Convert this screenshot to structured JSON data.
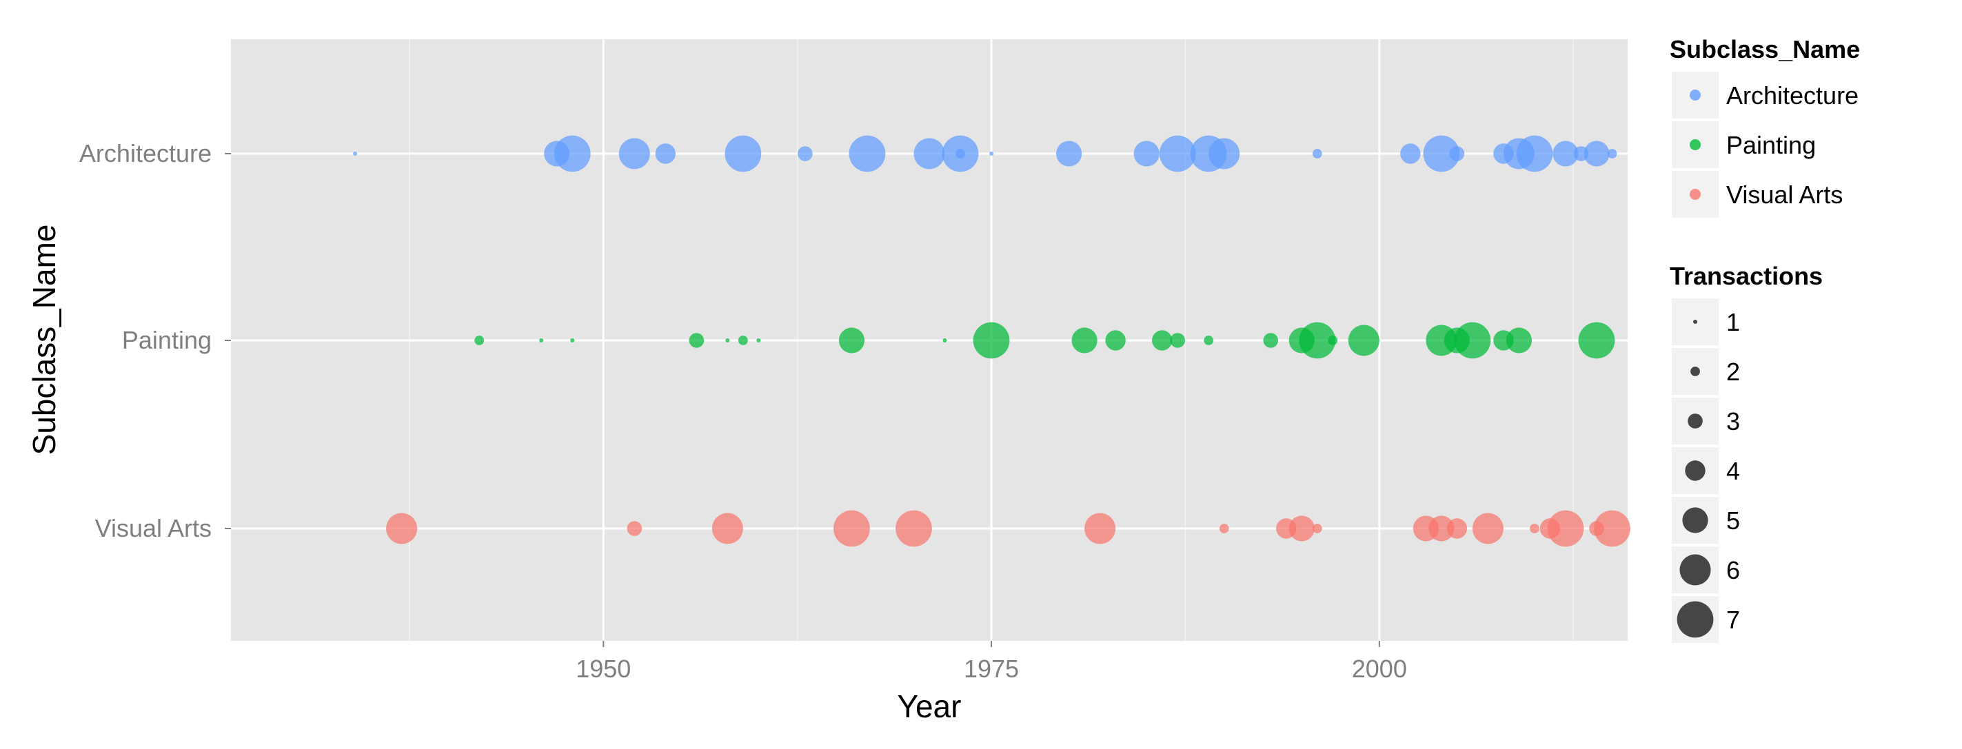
{
  "chart_data": {
    "type": "scatter",
    "xlabel": "Year",
    "ylabel": "Subclass_Name",
    "xlim": [
      1926,
      2016
    ],
    "x_ticks": [
      1950,
      1975,
      2000
    ],
    "categories": [
      "Architecture",
      "Painting",
      "Visual Arts"
    ],
    "grid": true,
    "legend_position": "right",
    "color_legend": {
      "title": "Subclass_Name",
      "items": [
        {
          "name": "Architecture",
          "color": "#619CFF"
        },
        {
          "name": "Painting",
          "color": "#00BA38"
        },
        {
          "name": "Visual Arts",
          "color": "#F8766D"
        }
      ]
    },
    "size_legend": {
      "title": "Transactions",
      "values": [
        1,
        2,
        3,
        4,
        5,
        6,
        7
      ]
    },
    "series": [
      {
        "name": "Architecture",
        "color": "#619CFF",
        "points": [
          {
            "x": 1934,
            "size": 1
          },
          {
            "x": 1947,
            "size": 5
          },
          {
            "x": 1948,
            "size": 7
          },
          {
            "x": 1952,
            "size": 6
          },
          {
            "x": 1954,
            "size": 4
          },
          {
            "x": 1959,
            "size": 7
          },
          {
            "x": 1963,
            "size": 3
          },
          {
            "x": 1967,
            "size": 7
          },
          {
            "x": 1971,
            "size": 6
          },
          {
            "x": 1973,
            "size": 7
          },
          {
            "x": 1973,
            "size": 2
          },
          {
            "x": 1975,
            "size": 1
          },
          {
            "x": 1980,
            "size": 5
          },
          {
            "x": 1985,
            "size": 5
          },
          {
            "x": 1987,
            "size": 7
          },
          {
            "x": 1989,
            "size": 7
          },
          {
            "x": 1990,
            "size": 6
          },
          {
            "x": 1996,
            "size": 2
          },
          {
            "x": 2002,
            "size": 4
          },
          {
            "x": 2004,
            "size": 7
          },
          {
            "x": 2005,
            "size": 3
          },
          {
            "x": 2008,
            "size": 4
          },
          {
            "x": 2009,
            "size": 6
          },
          {
            "x": 2010,
            "size": 7
          },
          {
            "x": 2012,
            "size": 5
          },
          {
            "x": 2013,
            "size": 3
          },
          {
            "x": 2014,
            "size": 5
          },
          {
            "x": 2015,
            "size": 2
          }
        ]
      },
      {
        "name": "Painting",
        "color": "#00BA38",
        "points": [
          {
            "x": 1942,
            "size": 2
          },
          {
            "x": 1946,
            "size": 1
          },
          {
            "x": 1948,
            "size": 1
          },
          {
            "x": 1956,
            "size": 3
          },
          {
            "x": 1958,
            "size": 1
          },
          {
            "x": 1959,
            "size": 2
          },
          {
            "x": 1960,
            "size": 1
          },
          {
            "x": 1966,
            "size": 5
          },
          {
            "x": 1972,
            "size": 1
          },
          {
            "x": 1975,
            "size": 7
          },
          {
            "x": 1981,
            "size": 5
          },
          {
            "x": 1983,
            "size": 4
          },
          {
            "x": 1986,
            "size": 4
          },
          {
            "x": 1987,
            "size": 3
          },
          {
            "x": 1989,
            "size": 2
          },
          {
            "x": 1993,
            "size": 3
          },
          {
            "x": 1995,
            "size": 5
          },
          {
            "x": 1996,
            "size": 7
          },
          {
            "x": 1997,
            "size": 2
          },
          {
            "x": 1999,
            "size": 6
          },
          {
            "x": 2004,
            "size": 6
          },
          {
            "x": 2005,
            "size": 5
          },
          {
            "x": 2006,
            "size": 7
          },
          {
            "x": 2008,
            "size": 4
          },
          {
            "x": 2009,
            "size": 5
          },
          {
            "x": 2014,
            "size": 7
          }
        ]
      },
      {
        "name": "Visual Arts",
        "color": "#F8766D",
        "points": [
          {
            "x": 1937,
            "size": 6
          },
          {
            "x": 1952,
            "size": 3
          },
          {
            "x": 1958,
            "size": 6
          },
          {
            "x": 1966,
            "size": 7
          },
          {
            "x": 1970,
            "size": 7
          },
          {
            "x": 1982,
            "size": 6
          },
          {
            "x": 1990,
            "size": 2
          },
          {
            "x": 1994,
            "size": 4
          },
          {
            "x": 1995,
            "size": 5
          },
          {
            "x": 1996,
            "size": 2
          },
          {
            "x": 2003,
            "size": 5
          },
          {
            "x": 2004,
            "size": 5
          },
          {
            "x": 2005,
            "size": 4
          },
          {
            "x": 2007,
            "size": 6
          },
          {
            "x": 2010,
            "size": 2
          },
          {
            "x": 2011,
            "size": 4
          },
          {
            "x": 2012,
            "size": 7
          },
          {
            "x": 2014,
            "size": 3
          },
          {
            "x": 2015,
            "size": 7
          }
        ]
      }
    ]
  }
}
